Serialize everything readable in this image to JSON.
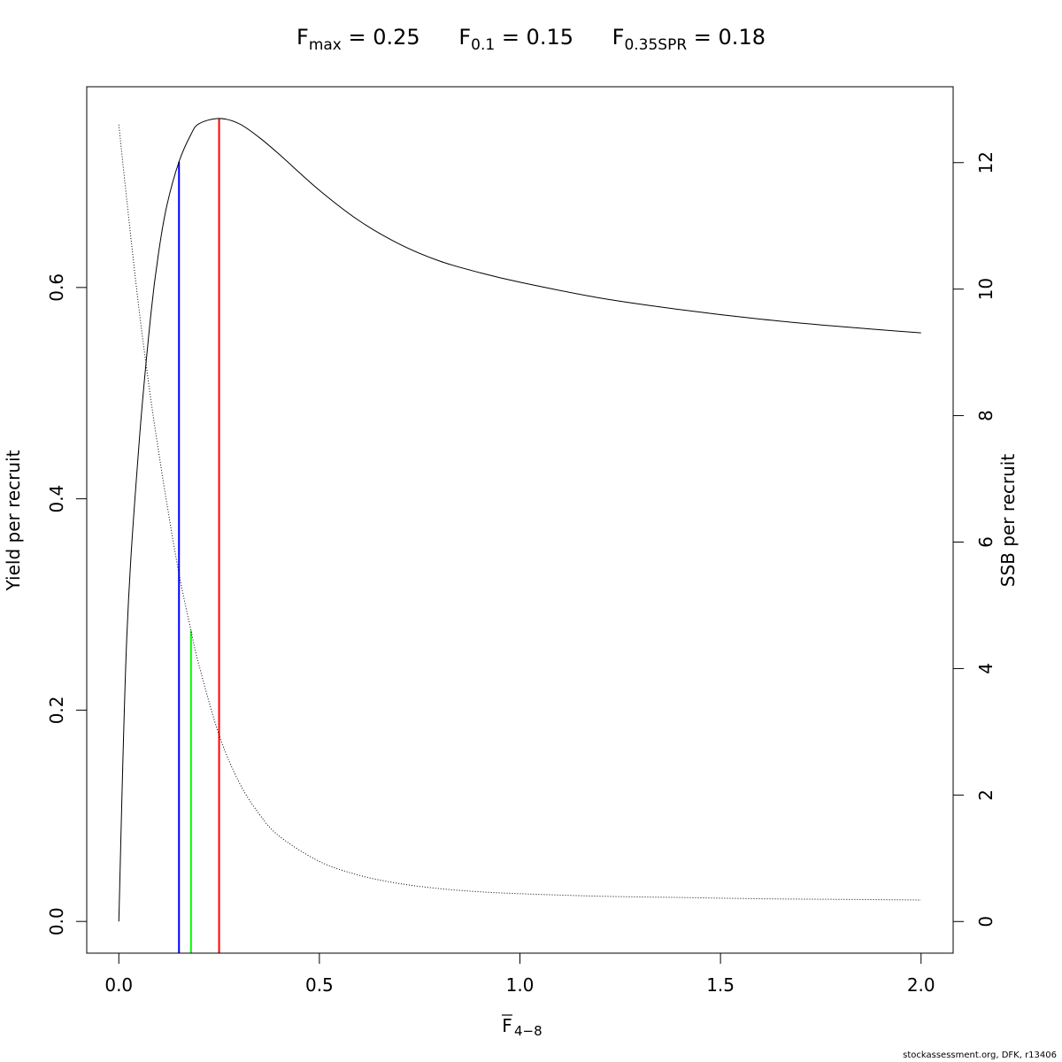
{
  "title": {
    "fmax_symbol": "F",
    "fmax_sub": "max",
    "fmax_value": " = 0.25",
    "f01_symbol": "F",
    "f01_sub": "0.1",
    "f01_value": " = 0.15",
    "fspr_symbol": "F",
    "fspr_sub": "0.35SPR",
    "fspr_value": " = 0.18"
  },
  "credit": "stockassessment.org, DFK, r13406",
  "chart_data": {
    "type": "line",
    "xlabel_main": "F",
    "xlabel_sub": "4−8",
    "ylabel_left": "Yield per recruit",
    "ylabel_right": "SSB per recruit",
    "xlim": [
      -0.08,
      2.08
    ],
    "ylim_left": [
      -0.03,
      0.79
    ],
    "ylim_right": [
      -0.5,
      13.2
    ],
    "x_ticks": [
      0.0,
      0.5,
      1.0,
      1.5,
      2.0
    ],
    "x_tick_labels": [
      "0.0",
      "0.5",
      "1.0",
      "1.5",
      "2.0"
    ],
    "y_left_ticks": [
      0.0,
      0.2,
      0.4,
      0.6
    ],
    "y_left_tick_labels": [
      "0.0",
      "0.2",
      "0.4",
      "0.6"
    ],
    "y_right_ticks": [
      0,
      2,
      4,
      6,
      8,
      10,
      12
    ],
    "y_right_tick_labels": [
      "0",
      "2",
      "4",
      "6",
      "8",
      "10",
      "12"
    ],
    "series": [
      {
        "name": "Yield per recruit",
        "axis": "left",
        "style": "solid",
        "color": "#000000",
        "x": [
          0,
          0.02,
          0.05,
          0.08,
          0.1,
          0.12,
          0.15,
          0.18,
          0.2,
          0.25,
          0.3,
          0.35,
          0.4,
          0.5,
          0.6,
          0.7,
          0.8,
          0.9,
          1.0,
          1.2,
          1.4,
          1.6,
          1.8,
          2.0
        ],
        "y": [
          0.0,
          0.27,
          0.45,
          0.575,
          0.635,
          0.678,
          0.719,
          0.745,
          0.755,
          0.76,
          0.755,
          0.742,
          0.726,
          0.692,
          0.663,
          0.641,
          0.625,
          0.614,
          0.605,
          0.59,
          0.579,
          0.57,
          0.563,
          0.557
        ]
      },
      {
        "name": "SSB per recruit",
        "axis": "right",
        "style": "dotted",
        "color": "#000000",
        "x": [
          0,
          0.02,
          0.05,
          0.08,
          0.1,
          0.12,
          0.15,
          0.18,
          0.2,
          0.25,
          0.3,
          0.35,
          0.4,
          0.5,
          0.6,
          0.7,
          0.8,
          0.9,
          1.0,
          1.2,
          1.4,
          1.6,
          1.8,
          2.0
        ],
        "y": [
          12.6,
          11.4,
          9.7,
          8.25,
          7.4,
          6.6,
          5.5,
          4.6,
          4.05,
          2.95,
          2.2,
          1.7,
          1.35,
          0.95,
          0.73,
          0.6,
          0.52,
          0.47,
          0.44,
          0.4,
          0.38,
          0.36,
          0.35,
          0.34
        ]
      }
    ],
    "reference_lines": [
      {
        "name": "F0.1",
        "x": 0.15,
        "color": "#0000ff"
      },
      {
        "name": "F0.35SPR",
        "x": 0.18,
        "color": "#00ff00"
      },
      {
        "name": "Fmax",
        "x": 0.25,
        "color": "#ff0000"
      }
    ]
  }
}
